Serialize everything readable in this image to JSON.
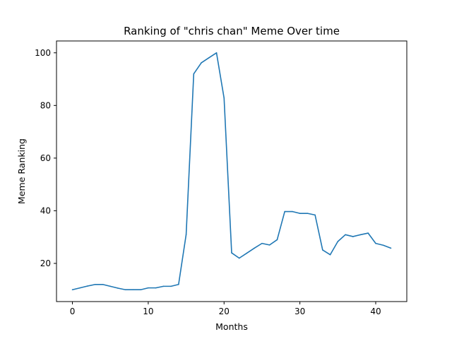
{
  "chart_data": {
    "type": "line",
    "title": "Ranking of \"chris chan\" Meme Over time",
    "xlabel": "Months",
    "ylabel": "Meme Ranking",
    "xlim": [
      -2.1,
      44.1
    ],
    "ylim": [
      5.5,
      104.5
    ],
    "xticks": [
      0,
      10,
      20,
      30,
      40
    ],
    "yticks": [
      20,
      40,
      60,
      80,
      100
    ],
    "grid": false,
    "legend": "none",
    "series": [
      {
        "color": "#1f77b4",
        "x": [
          0,
          1,
          2,
          3,
          4,
          5,
          6,
          7,
          8,
          9,
          10,
          11,
          12,
          13,
          14,
          15,
          16,
          17,
          18,
          19,
          20,
          21,
          22,
          23,
          24,
          25,
          26,
          27,
          28,
          29,
          30,
          31,
          32,
          33,
          34,
          35,
          36,
          37,
          38,
          39,
          40,
          41,
          42
        ],
        "values": [
          10,
          10.7,
          11.4,
          12,
          12,
          11.3,
          10.6,
          10,
          10,
          10,
          10.7,
          10.7,
          11.3,
          11.3,
          12,
          31,
          92,
          96.2,
          98.1,
          100,
          82.8,
          24,
          22,
          23.9,
          25.8,
          27.6,
          27,
          29,
          39.7,
          39.7,
          39,
          39,
          38.4,
          25.1,
          23.3,
          28.3,
          30.9,
          30.2,
          30.9,
          31.5,
          27.6,
          26.9,
          25.8
        ]
      }
    ]
  }
}
